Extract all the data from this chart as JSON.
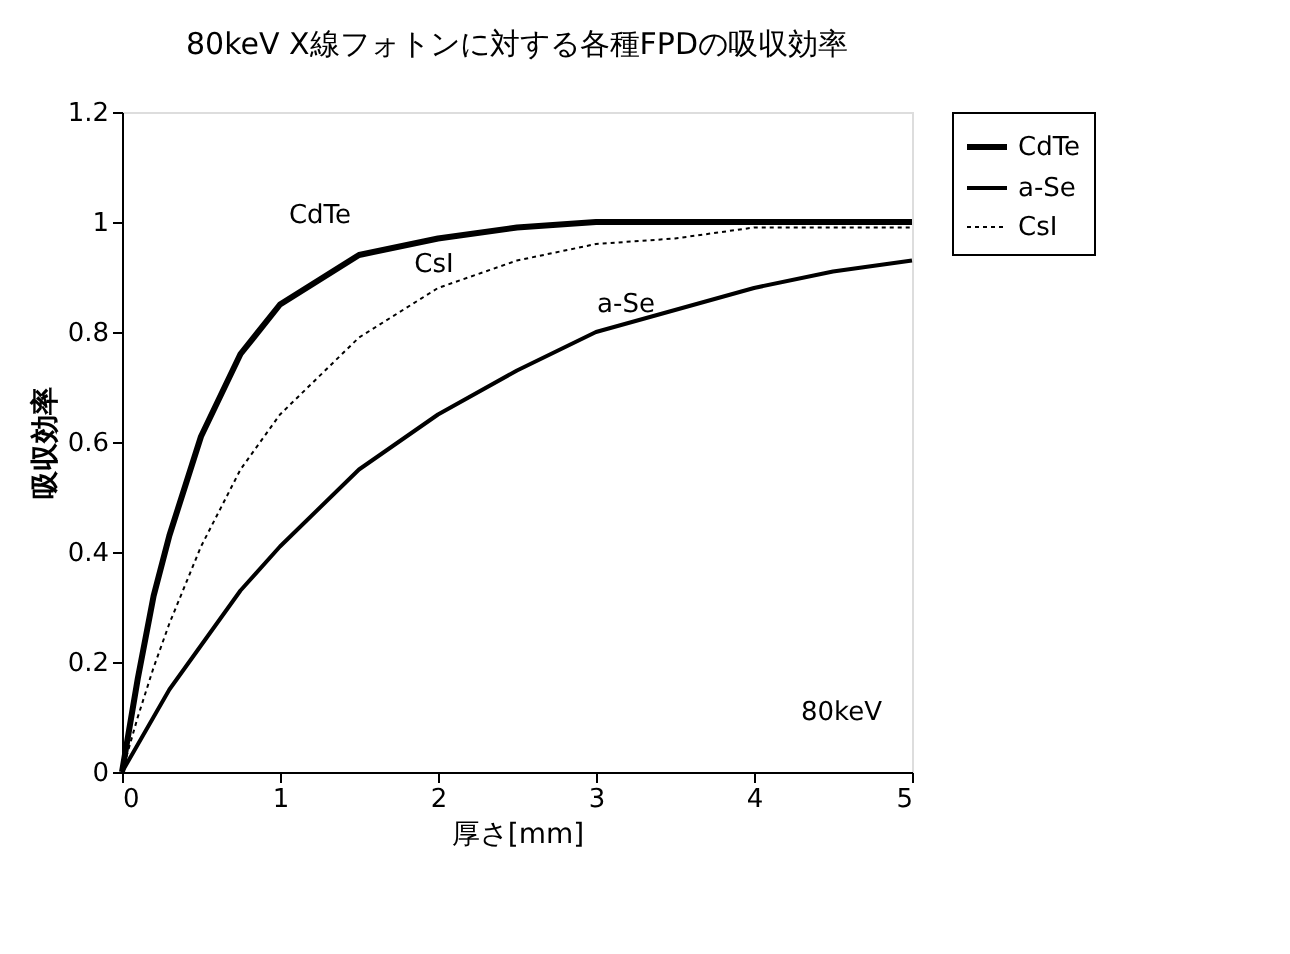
{
  "chart_data": {
    "type": "line",
    "title": "80keV X線フォトンに対する各種FPDの吸収効率",
    "xlabel": "厚さ[mm]",
    "ylabel": "吸収効率",
    "x": [
      0,
      0.1,
      0.2,
      0.3,
      0.5,
      0.75,
      1,
      1.5,
      2,
      2.5,
      3,
      3.5,
      4,
      4.5,
      5
    ],
    "series": [
      {
        "name": "CdTe",
        "color": "#000000",
        "line_style": "solid",
        "values": [
          0,
          0.17,
          0.32,
          0.43,
          0.61,
          0.76,
          0.85,
          0.94,
          0.97,
          0.99,
          1,
          1,
          1,
          1,
          1
        ]
      },
      {
        "name": "a-Se",
        "color": "#000000",
        "line_style": "solid",
        "values": [
          0,
          0.05,
          0.1,
          0.15,
          0.23,
          0.33,
          0.41,
          0.55,
          0.65,
          0.73,
          0.8,
          0.84,
          0.88,
          0.91,
          0.93
        ]
      },
      {
        "name": "CsI",
        "color": "#000000",
        "line_style": "dotted",
        "values": [
          0,
          0.1,
          0.19,
          0.27,
          0.41,
          0.55,
          0.65,
          0.79,
          0.88,
          0.93,
          0.96,
          0.97,
          0.99,
          0.99,
          0.99
        ]
      }
    ],
    "xlim": [
      0,
      5
    ],
    "xticks": [
      0,
      1,
      2,
      3,
      4,
      5
    ],
    "ylim": [
      0,
      1.2
    ],
    "yticks": [
      0,
      0.2,
      0.4,
      0.6,
      0.8,
      1,
      1.2
    ],
    "grid": false,
    "legend": "right",
    "marker": "none",
    "annotations": [
      "80keV"
    ]
  }
}
